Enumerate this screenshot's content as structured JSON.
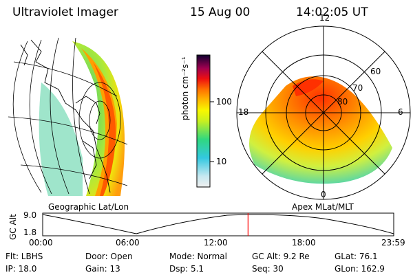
{
  "header": {
    "instrument": "Ultraviolet Imager",
    "date": "15 Aug 00",
    "time": "14:02:05 UT"
  },
  "panels": {
    "left_label": "Geographic Lat/Lon",
    "right_label": "Apex MLat/MLT"
  },
  "colorbar": {
    "units": "photon cm⁻²s⁻¹",
    "tick_high": "100",
    "tick_low": "10"
  },
  "polar": {
    "mlt_top": "12",
    "mlt_left": "18",
    "mlt_right": "6",
    "mlt_bottom": "0",
    "lat_60": "60",
    "lat_70": "70",
    "lat_80": "80"
  },
  "timeline": {
    "ylabel": "GC Alt",
    "y_top": "9.0",
    "y_bottom": "1.8",
    "ticks": [
      "00:00",
      "06:00",
      "12:00",
      "18:00",
      "23:59"
    ],
    "current_fraction": 0.585,
    "marker_color": "#ff0000"
  },
  "info": {
    "flt": "Flt: LBHS",
    "door": "Door: Open",
    "mode": "Mode: Normal",
    "gc_alt": "GC Alt: 9.2 Re",
    "glat": "GLat:  76.1",
    "ip": "IP: 18.0",
    "gain": "Gain: 13",
    "dsp": "Dsp:    5.1",
    "seq": "Seq: 30",
    "glon": "GLon: 162.9"
  }
}
